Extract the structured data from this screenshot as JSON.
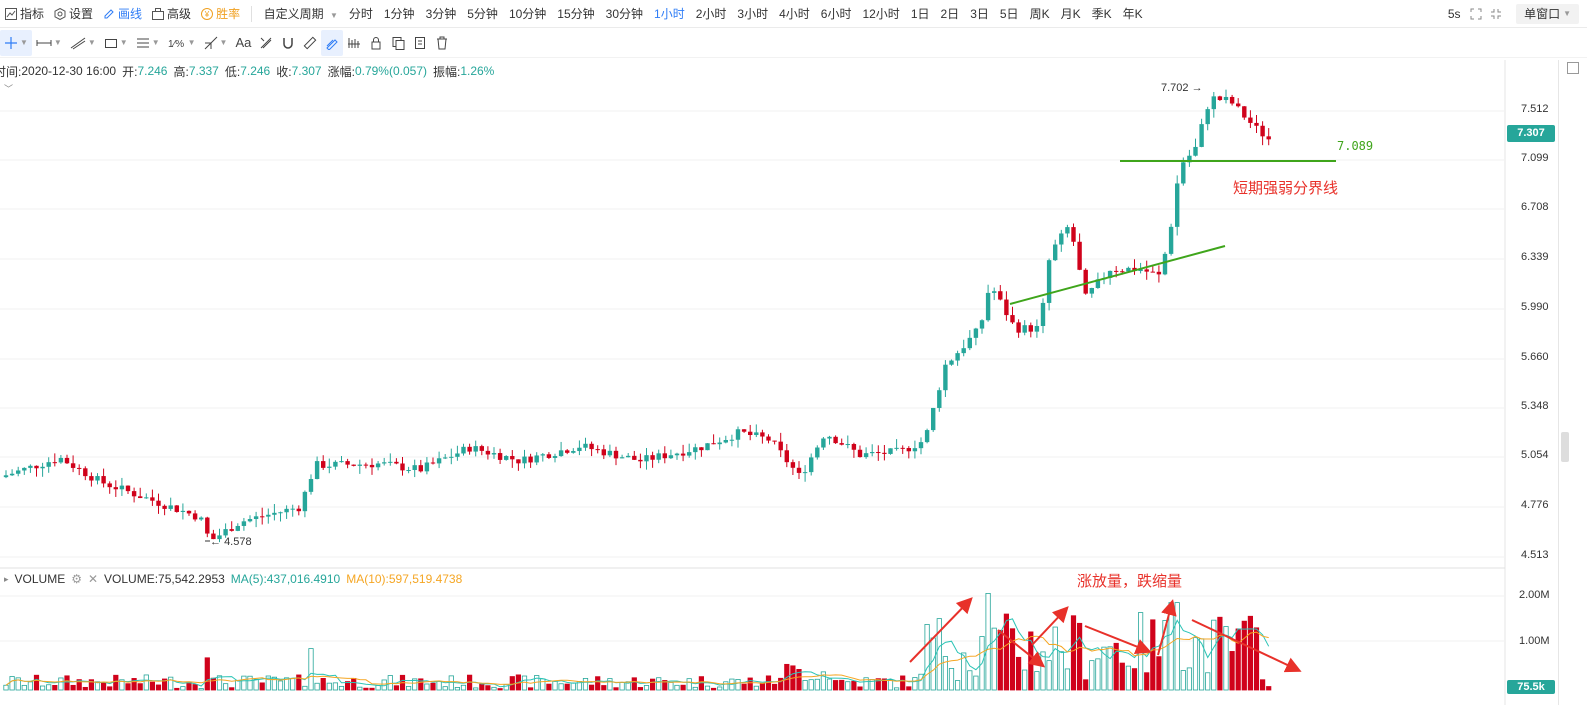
{
  "topbar": {
    "indicator": "指标",
    "settings": "设置",
    "draw": "画线",
    "advanced": "高级",
    "winrate": "胜率",
    "custom_period": "自定义周期",
    "periods": [
      "分时",
      "1分钟",
      "3分钟",
      "5分钟",
      "10分钟",
      "15分钟",
      "30分钟",
      "1小时",
      "2小时",
      "3小时",
      "4小时",
      "6小时",
      "12小时",
      "1日",
      "2日",
      "3日",
      "5日",
      "周K",
      "月K",
      "季K",
      "年K"
    ],
    "active_period": "1小时",
    "refresh": "5s",
    "window_mode": "单窗口"
  },
  "info": {
    "time_label": "时间:",
    "time_value": "2020-12-30 16:00",
    "open_label": "开:",
    "open": "7.246",
    "high_label": "高:",
    "high": "7.337",
    "low_label": "低:",
    "low": "7.246",
    "close_label": "收:",
    "close": "7.307",
    "change_label": "涨幅:",
    "change": "0.79%(0.057)",
    "amp_label": "振幅:",
    "amp": "1.26%"
  },
  "price_axis": [
    "7.512",
    "7.099",
    "6.708",
    "6.339",
    "5.990",
    "5.660",
    "5.348",
    "5.054",
    "4.776",
    "4.513"
  ],
  "current_price": "7.307",
  "volume_panel": {
    "name": "VOLUME",
    "volume_label": "VOLUME:75,542.2953",
    "ma5_label": "MA(5):437,016.4910",
    "ma10_label": "MA(10):597,519.4738",
    "axis": [
      "2.00M",
      "1.00M"
    ],
    "current_volume": "75.5k"
  },
  "annotations": {
    "high_marker": "7.702",
    "low_marker": "4.578",
    "support_level": "7.089",
    "divider_text": "短期强弱分界线",
    "volume_text": "涨放量，跌缩量"
  },
  "colors": {
    "up": "#26a69a",
    "down": "#d0021b",
    "annotation_red": "#e8312a",
    "line_green": "#3fa51b",
    "ma5": "#2bc4b6",
    "ma10": "#f5a623",
    "accent": "#2f7df6"
  },
  "chart_data": {
    "type": "candlestick",
    "price_range": [
      4.45,
      7.85
    ],
    "volume_range": [
      0,
      2200000
    ],
    "candles": []
  }
}
